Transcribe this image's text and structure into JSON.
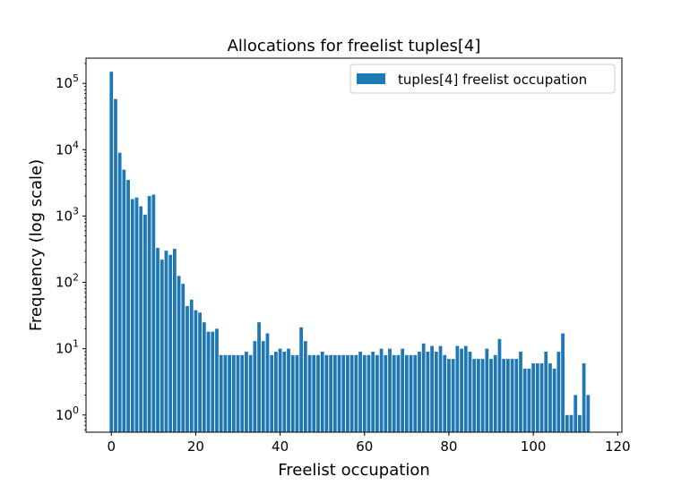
{
  "chart_data": {
    "type": "bar",
    "title": "Allocations for freelist tuples[4]",
    "xlabel": "Freelist occupation",
    "ylabel": "Frequency (log scale)",
    "yscale": "log",
    "xlim": [
      -6,
      121
    ],
    "ylim": [
      0.55,
      240000
    ],
    "x_ticks": [
      0,
      20,
      40,
      60,
      80,
      100,
      120
    ],
    "y_ticks": [
      {
        "value": 1,
        "base": "10",
        "exp": "0"
      },
      {
        "value": 10,
        "base": "10",
        "exp": "1"
      },
      {
        "value": 100,
        "base": "10",
        "exp": "2"
      },
      {
        "value": 1000,
        "base": "10",
        "exp": "3"
      },
      {
        "value": 10000,
        "base": "10",
        "exp": "4"
      },
      {
        "value": 100000,
        "base": "10",
        "exp": "5"
      }
    ],
    "legend_position": "top-right",
    "bar_color": "#1f77b4",
    "series": [
      {
        "name": "tuples[4] freelist occupation",
        "x_start": 0,
        "values": [
          150000,
          58000,
          9000,
          5000,
          3500,
          1800,
          1900,
          1400,
          1050,
          2000,
          2100,
          330,
          220,
          300,
          260,
          320,
          125,
          95,
          44,
          55,
          38,
          35,
          25,
          18,
          18,
          20,
          8,
          8,
          8,
          8,
          8,
          8,
          9,
          8,
          13,
          25,
          13,
          17,
          8,
          9,
          10,
          9,
          10,
          8,
          8,
          21,
          13,
          8,
          8,
          8,
          9,
          8,
          8,
          8,
          8,
          8,
          8,
          8,
          8,
          9,
          8,
          8,
          9,
          8,
          10,
          8,
          10,
          8,
          8,
          10,
          8,
          8,
          8,
          9,
          12,
          9,
          11,
          9,
          11,
          8,
          7,
          7,
          11,
          10,
          11,
          9,
          7,
          7,
          7,
          10,
          7,
          8,
          14,
          7,
          7,
          7,
          7,
          9,
          5,
          5,
          6,
          6,
          6,
          9,
          6,
          5,
          9,
          17,
          1,
          1,
          2,
          1,
          6,
          2
        ]
      }
    ]
  }
}
